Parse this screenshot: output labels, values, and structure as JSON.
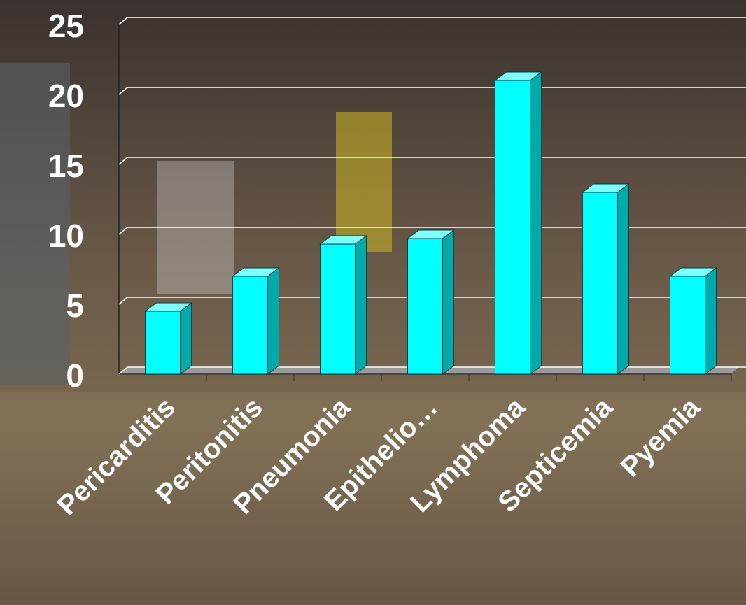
{
  "chart_data": {
    "type": "bar",
    "categories": [
      "Pericarditis",
      "Peritonitis",
      "Pneumonia",
      "Epithelio…",
      "Lymphoma",
      "Septicemia",
      "Pyemia"
    ],
    "values": [
      4.5,
      7,
      9.3,
      9.7,
      21,
      13,
      7
    ],
    "color": "#00ffff",
    "ylim": [
      0,
      25
    ],
    "yticks": [
      0,
      5,
      10,
      15,
      20,
      25
    ],
    "grid": true
  }
}
